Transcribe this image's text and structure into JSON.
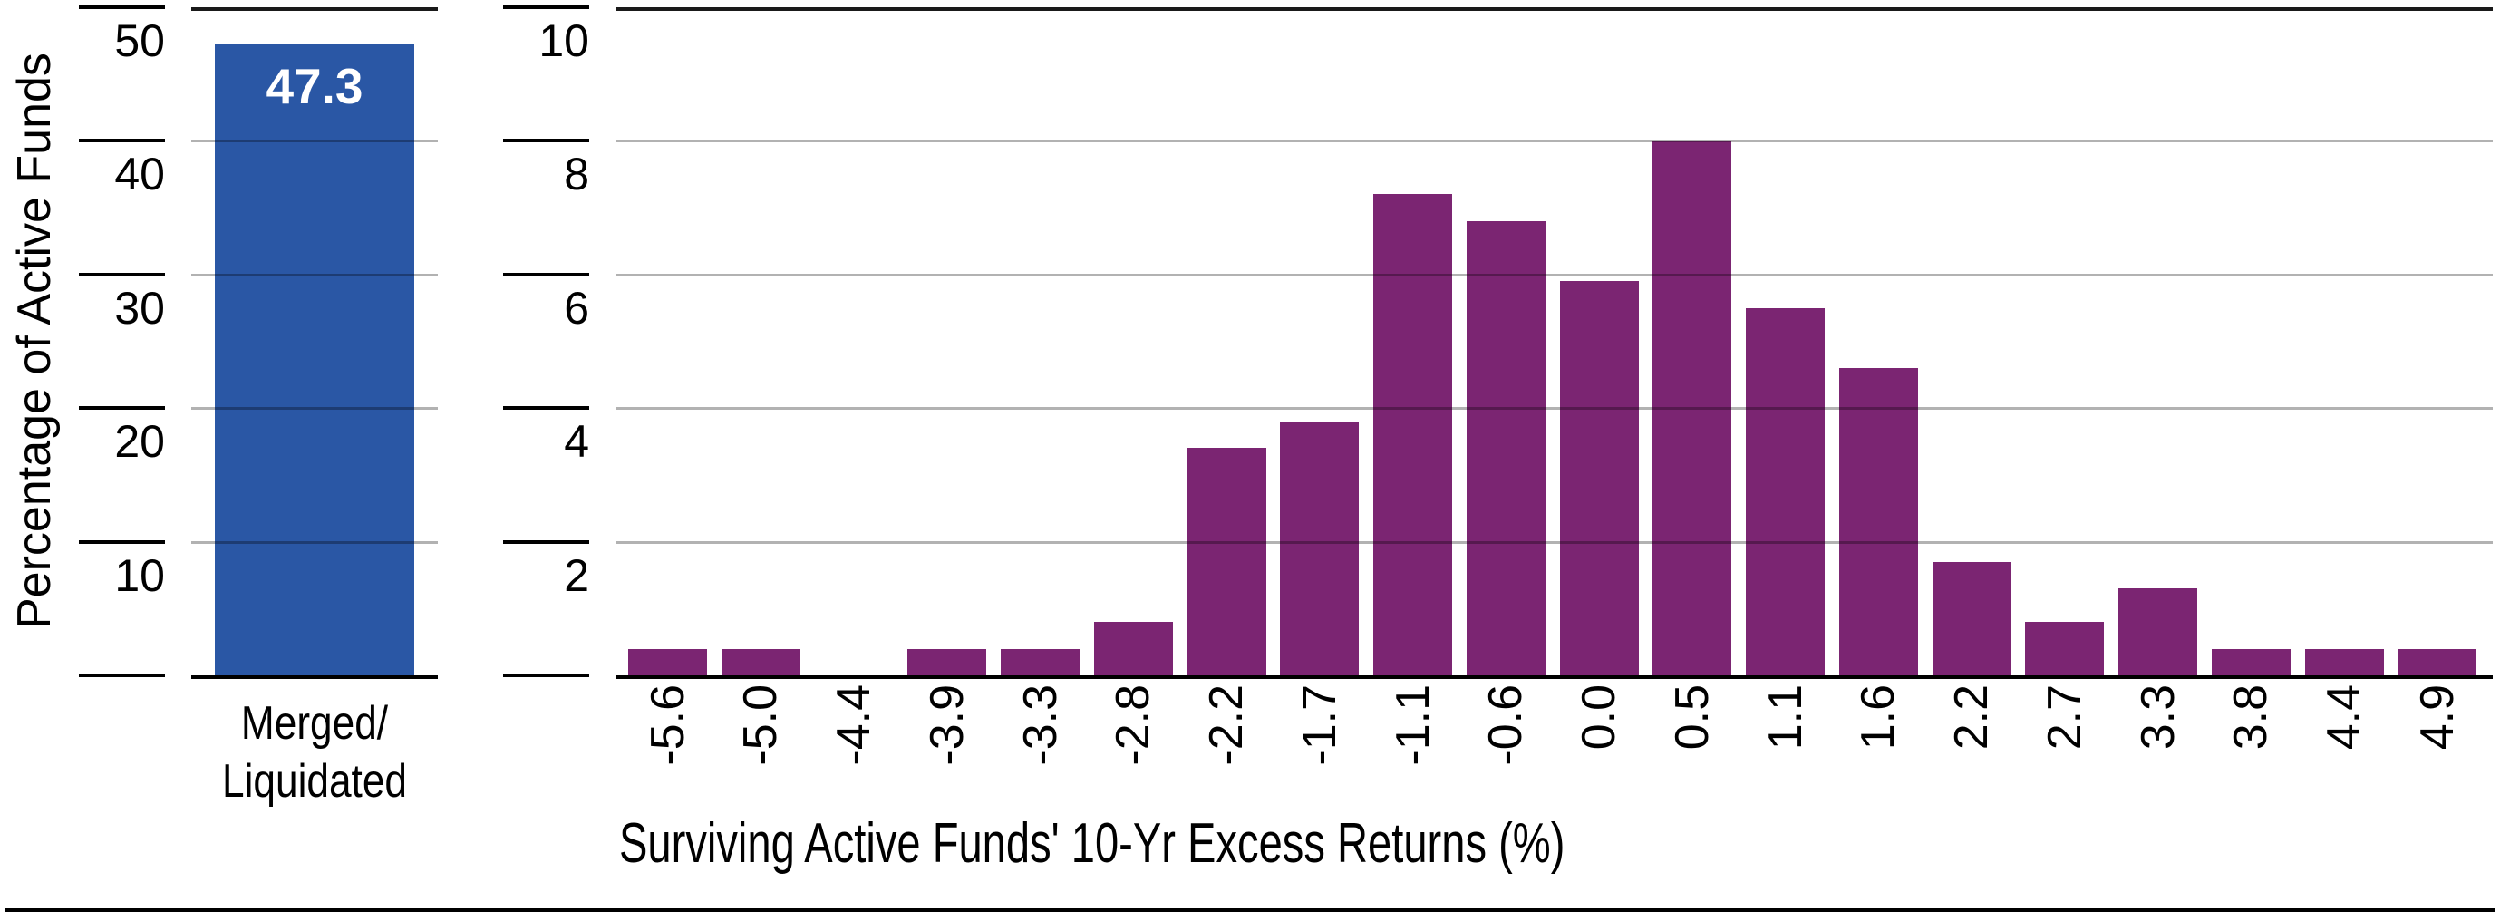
{
  "charts": {
    "survivorship": {
      "category_display": "Merged/\nLiquidated"
    }
  },
  "chart_data": [
    {
      "type": "bar",
      "categories": [
        "Merged/Liquidated"
      ],
      "values": [
        47.3
      ],
      "value_labels": [
        "47.3"
      ],
      "ylabel": "Percentage of Active Funds",
      "xlabel": "",
      "ylim": [
        0,
        50
      ],
      "yticks": [
        10,
        20,
        30,
        40,
        50
      ],
      "grid": true,
      "legend": false,
      "bar_color": "#2a57a5"
    },
    {
      "type": "bar",
      "categories": [
        "-5.6",
        "-5.0",
        "-4.4",
        "-3.9",
        "-3.3",
        "-2.8",
        "-2.2",
        "-1.7",
        "-1.1",
        "-0.6",
        "0.0",
        "0.5",
        "1.1",
        "1.6",
        "2.2",
        "2.7",
        "3.3",
        "3.8",
        "4.4",
        "4.9"
      ],
      "values": [
        0.4,
        0.4,
        0,
        0.4,
        0.4,
        0.8,
        3.4,
        3.8,
        7.2,
        6.8,
        5.9,
        8.0,
        5.5,
        4.6,
        1.7,
        0.8,
        1.3,
        0.4,
        0.4,
        0.4
      ],
      "ylabel": "",
      "xlabel": "Surviving Active Funds' 10-Yr Excess Returns (%)",
      "ylim": [
        0,
        10
      ],
      "yticks": [
        2,
        4,
        6,
        8,
        10
      ],
      "grid": true,
      "legend": false,
      "x_tick_rotation": -90,
      "bar_color": "#7b2572"
    }
  ],
  "colors": {
    "survivorship_bar": "#2a57a5",
    "histogram_bar": "#7b2572",
    "axis": "#000000",
    "gridline": "rgba(0,0,0,0.30)",
    "top_border": "#1a1a1a",
    "bar_value_text": "#ffffff"
  }
}
